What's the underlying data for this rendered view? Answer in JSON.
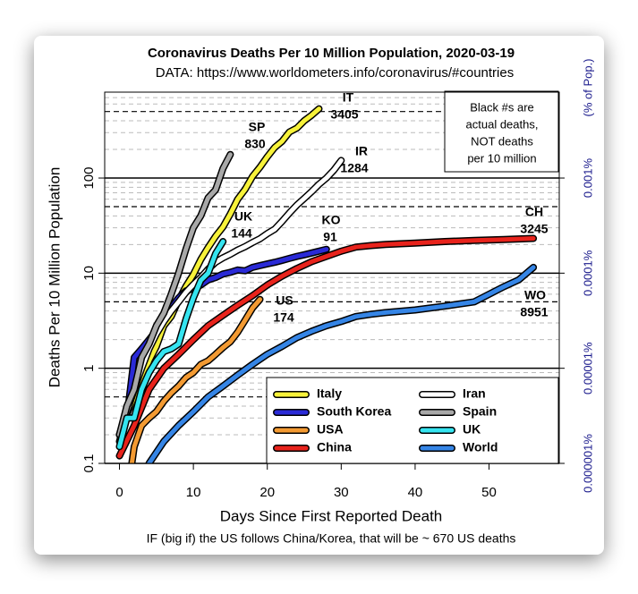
{
  "chart_data": {
    "type": "line",
    "title": "Coronavirus Deaths Per 10 Million Population, 2020-03-19",
    "subtitle": "DATA: https://www.worldometers.info/coronavirus/#countries",
    "xlabel": "Days Since First Reported Death",
    "ylabel": "Deaths Per 10 Million Population",
    "y2label": "(% of Pop.)",
    "footnote": "IF (big if) the US follows China/Korea, that will be ~ 670 US deaths",
    "note": [
      "Black #s are",
      "actual deaths,",
      "NOT deaths",
      "per 10 million"
    ],
    "log_scale": true,
    "grid": true,
    "legend": "lower right",
    "xlim": [
      -2,
      59.5
    ],
    "xticks": [
      0,
      10,
      20,
      30,
      40,
      50
    ],
    "ylim": [
      0.1,
      800
    ],
    "yticks": [
      0.1,
      1,
      10,
      100
    ],
    "yminor": [
      0.2,
      0.3,
      0.4,
      0.5,
      0.6,
      0.7,
      0.8,
      0.9,
      2,
      3,
      4,
      5,
      6,
      7,
      8,
      9,
      20,
      30,
      40,
      50,
      60,
      70,
      80,
      90,
      200,
      300,
      400,
      500,
      600,
      700
    ],
    "y2lim": [
      1e-06,
      0.008
    ],
    "y2ticks": [
      {
        "value": 1e-06,
        "label": "0.000001%"
      },
      {
        "value": 1e-05,
        "label": "0.00001%"
      },
      {
        "value": 0.0001,
        "label": "0.0001%"
      },
      {
        "value": 0.001,
        "label": "0.001%"
      }
    ],
    "series": [
      {
        "name": "Italy",
        "label": "IT",
        "deaths": 3405,
        "color": "#f7f23a",
        "x": [
          0,
          1,
          2,
          3,
          4,
          5,
          6,
          7,
          8,
          9,
          10,
          11,
          12,
          13,
          14,
          15,
          16,
          17,
          18,
          19,
          20,
          21,
          22,
          23,
          24,
          25,
          26,
          27
        ],
        "values": [
          0.17,
          0.33,
          0.5,
          0.7,
          1.2,
          1.7,
          2.8,
          3.5,
          5.2,
          7.3,
          9.7,
          13.9,
          18.6,
          24.4,
          30.6,
          42,
          60,
          76,
          104,
          130,
          167,
          210,
          243,
          305,
          335,
          400,
          458,
          535
        ]
      },
      {
        "name": "South Korea",
        "label": "KO",
        "deaths": 91,
        "color": "#2a2ad6",
        "x": [
          0,
          1,
          2,
          3,
          4,
          5,
          6,
          7,
          8,
          9,
          10,
          11,
          12,
          13,
          14,
          15,
          16,
          17,
          18,
          19,
          20,
          21,
          22,
          23,
          24,
          25,
          26,
          27,
          28
        ],
        "values": [
          0.2,
          0.3,
          1.3,
          1.6,
          2.0,
          2.5,
          3.2,
          4.3,
          5.5,
          6.5,
          6.9,
          7.5,
          8.5,
          9.0,
          9.8,
          10.2,
          10.8,
          10.6,
          11.5,
          12.0,
          12.5,
          13,
          13.6,
          14.3,
          15,
          15.6,
          16.3,
          17,
          17.8
        ]
      },
      {
        "name": "USA",
        "label": "US",
        "deaths": 174,
        "color": "#f39a32",
        "x": [
          1.5,
          2,
          3,
          4,
          5,
          6,
          7,
          8,
          9,
          10,
          11,
          12,
          13,
          14,
          15,
          16,
          17,
          18,
          19
        ],
        "values": [
          0.08,
          0.15,
          0.25,
          0.3,
          0.35,
          0.45,
          0.55,
          0.65,
          0.8,
          0.9,
          1.1,
          1.2,
          1.4,
          1.65,
          1.9,
          2.4,
          3.2,
          4.3,
          5.3
        ]
      },
      {
        "name": "China",
        "label": "CH",
        "deaths": 3245,
        "color": "#e8231c",
        "x": [
          0,
          2,
          4,
          6,
          8,
          10,
          12,
          14,
          16,
          18,
          20,
          22,
          24,
          26,
          28,
          30,
          32,
          34,
          36,
          40,
          44,
          48,
          52,
          56
        ],
        "values": [
          0.12,
          0.25,
          0.6,
          1.0,
          1.4,
          2.0,
          2.8,
          3.6,
          4.6,
          5.8,
          7.5,
          9.3,
          11.2,
          13.2,
          15.0,
          17.0,
          18.8,
          19.5,
          20.0,
          20.7,
          21.5,
          22.1,
          22.6,
          23.2
        ]
      },
      {
        "name": "Iran",
        "label": "IR",
        "deaths": 1284,
        "color": "#ffffff",
        "x": [
          0,
          1,
          2,
          3,
          4,
          5,
          6,
          7,
          8,
          9,
          10,
          11,
          12,
          13,
          14,
          15,
          16,
          17,
          18,
          19,
          20,
          21,
          22,
          23,
          24,
          25,
          26,
          27,
          28,
          29,
          30
        ],
        "values": [
          0.2,
          0.35,
          0.6,
          1.0,
          1.6,
          2.3,
          3.1,
          4.0,
          5,
          6.3,
          7.6,
          9,
          11,
          13,
          14.5,
          15.8,
          17.5,
          19,
          21,
          23,
          26,
          29,
          35,
          43,
          52,
          61,
          72,
          86,
          100,
          121,
          153
        ]
      },
      {
        "name": "Spain",
        "label": "SP",
        "deaths": 830,
        "color": "#a8a8a8",
        "x": [
          0,
          1,
          2,
          3,
          4,
          5,
          6,
          7,
          8,
          9,
          10,
          11,
          12,
          13,
          14,
          15
        ],
        "values": [
          0.2,
          0.4,
          0.6,
          1.3,
          1.8,
          2.8,
          3.8,
          6,
          10,
          18,
          30,
          40,
          62,
          75,
          126,
          177
        ]
      },
      {
        "name": "UK",
        "label": "UK",
        "deaths": 144,
        "color": "#35e4f0",
        "x": [
          0,
          1,
          2,
          3,
          4,
          5,
          6,
          7,
          8,
          9,
          10,
          11,
          12,
          13,
          14
        ],
        "values": [
          0.15,
          0.3,
          0.3,
          0.6,
          0.9,
          1.2,
          1.5,
          1.6,
          1.8,
          3.3,
          5.5,
          8.4,
          10,
          16,
          21.5
        ]
      },
      {
        "name": "World",
        "label": "WO",
        "deaths": 8951,
        "color": "#3585e6",
        "x": [
          3.5,
          4,
          6,
          8,
          10,
          12,
          14,
          16,
          18,
          20,
          22,
          24,
          26,
          28,
          30,
          32,
          34,
          36,
          40,
          44,
          48,
          52,
          54,
          56
        ],
        "values": [
          0.08,
          0.1,
          0.17,
          0.25,
          0.35,
          0.5,
          0.65,
          0.85,
          1.1,
          1.4,
          1.7,
          2.1,
          2.45,
          2.8,
          3.1,
          3.5,
          3.7,
          3.85,
          4.1,
          4.5,
          5.0,
          7.2,
          8.5,
          11.5
        ]
      }
    ]
  }
}
